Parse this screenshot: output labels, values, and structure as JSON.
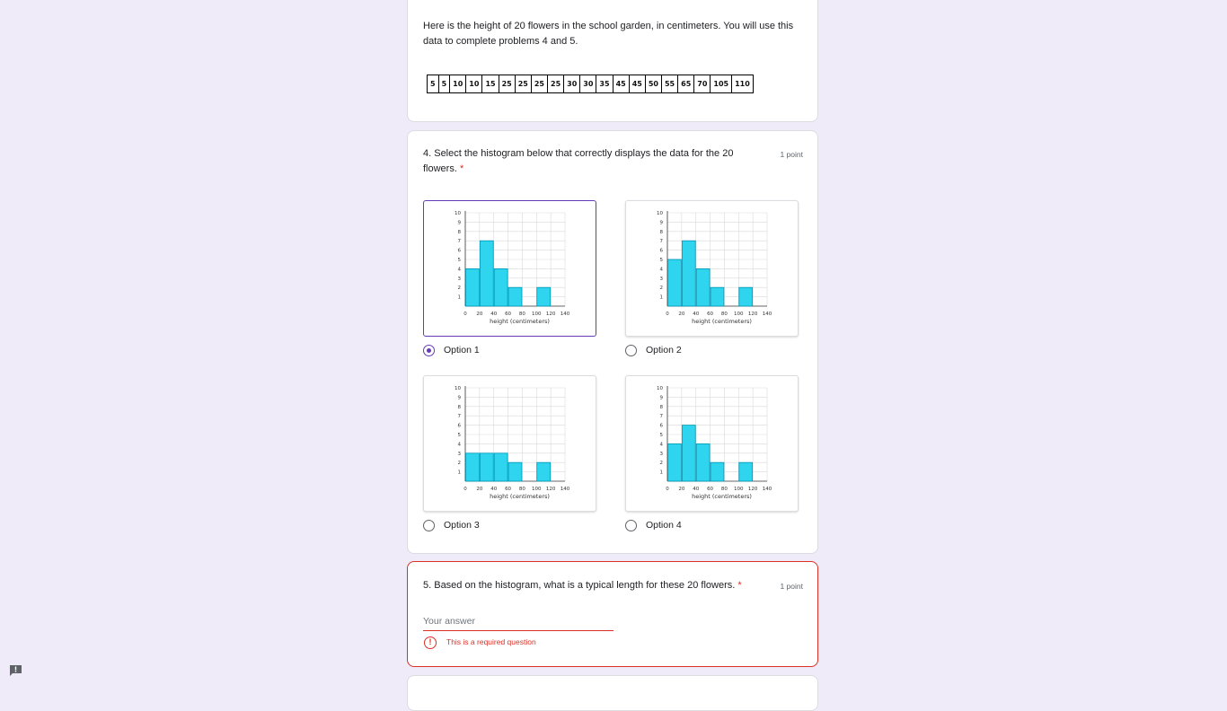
{
  "intro": {
    "text": "Here is the height of 20 flowers in the school garden, in centimeters. You will use this data to complete problems 4 and 5.",
    "heights": [
      "5",
      "5",
      "10",
      "10",
      "15",
      "25",
      "25",
      "25",
      "25",
      "30",
      "30",
      "35",
      "45",
      "45",
      "50",
      "55",
      "65",
      "70",
      "105",
      "110"
    ]
  },
  "q4": {
    "title": "4. Select the histogram below that correctly displays the data for the 20 flowers.",
    "required": "*",
    "points": "1 point",
    "options": [
      {
        "label": "Option 1",
        "selected": true,
        "chart_data": {
          "type": "bar",
          "categories": [
            "0-20",
            "20-40",
            "40-60",
            "60-80",
            "80-100",
            "100-120"
          ],
          "values": [
            4,
            7,
            4,
            2,
            0,
            2
          ],
          "xlabel": "height (centimeters)",
          "ylim": [
            0,
            10
          ],
          "xticks": [
            "0",
            "20",
            "40",
            "60",
            "80",
            "100",
            "120",
            "140"
          ],
          "yticks": [
            "1",
            "2",
            "3",
            "4",
            "5",
            "6",
            "7",
            "8",
            "9",
            "10"
          ]
        }
      },
      {
        "label": "Option 2",
        "selected": false,
        "chart_data": {
          "type": "bar",
          "categories": [
            "0-20",
            "20-40",
            "40-60",
            "60-80",
            "80-100",
            "100-120"
          ],
          "values": [
            5,
            7,
            4,
            2,
            0,
            2
          ],
          "xlabel": "height (centimeters)",
          "ylim": [
            0,
            10
          ],
          "xticks": [
            "0",
            "20",
            "40",
            "60",
            "80",
            "100",
            "120",
            "140"
          ],
          "yticks": [
            "1",
            "2",
            "3",
            "4",
            "5",
            "6",
            "7",
            "8",
            "9",
            "10"
          ]
        }
      },
      {
        "label": "Option 3",
        "selected": false,
        "chart_data": {
          "type": "bar",
          "categories": [
            "0-20",
            "20-40",
            "40-60",
            "60-80",
            "80-100",
            "100-120"
          ],
          "values": [
            3,
            3,
            3,
            2,
            0,
            2
          ],
          "xlabel": "height (centimeters)",
          "ylim": [
            0,
            10
          ],
          "xticks": [
            "0",
            "20",
            "40",
            "60",
            "80",
            "100",
            "120",
            "140"
          ],
          "yticks": [
            "1",
            "2",
            "3",
            "4",
            "5",
            "6",
            "7",
            "8",
            "9",
            "10"
          ]
        }
      },
      {
        "label": "Option 4",
        "selected": false,
        "chart_data": {
          "type": "bar",
          "categories": [
            "0-20",
            "20-40",
            "40-60",
            "60-80",
            "80-100",
            "100-120"
          ],
          "values": [
            4,
            6,
            4,
            2,
            0,
            2
          ],
          "xlabel": "height (centimeters)",
          "ylim": [
            0,
            10
          ],
          "xticks": [
            "0",
            "20",
            "40",
            "60",
            "80",
            "100",
            "120",
            "140"
          ],
          "yticks": [
            "1",
            "2",
            "3",
            "4",
            "5",
            "6",
            "7",
            "8",
            "9",
            "10"
          ]
        }
      }
    ]
  },
  "q5": {
    "title": "5. Based on the histogram, what is a typical length for these 20 flowers.",
    "required": "*",
    "points": "1 point",
    "placeholder": "Your answer",
    "value": "",
    "error": "This is a required question"
  },
  "colors": {
    "accent": "#673ab7",
    "error": "#d93025",
    "bar_fill": "#2fd5ee",
    "bar_stroke": "#0098b8",
    "background": "#efebf9"
  }
}
